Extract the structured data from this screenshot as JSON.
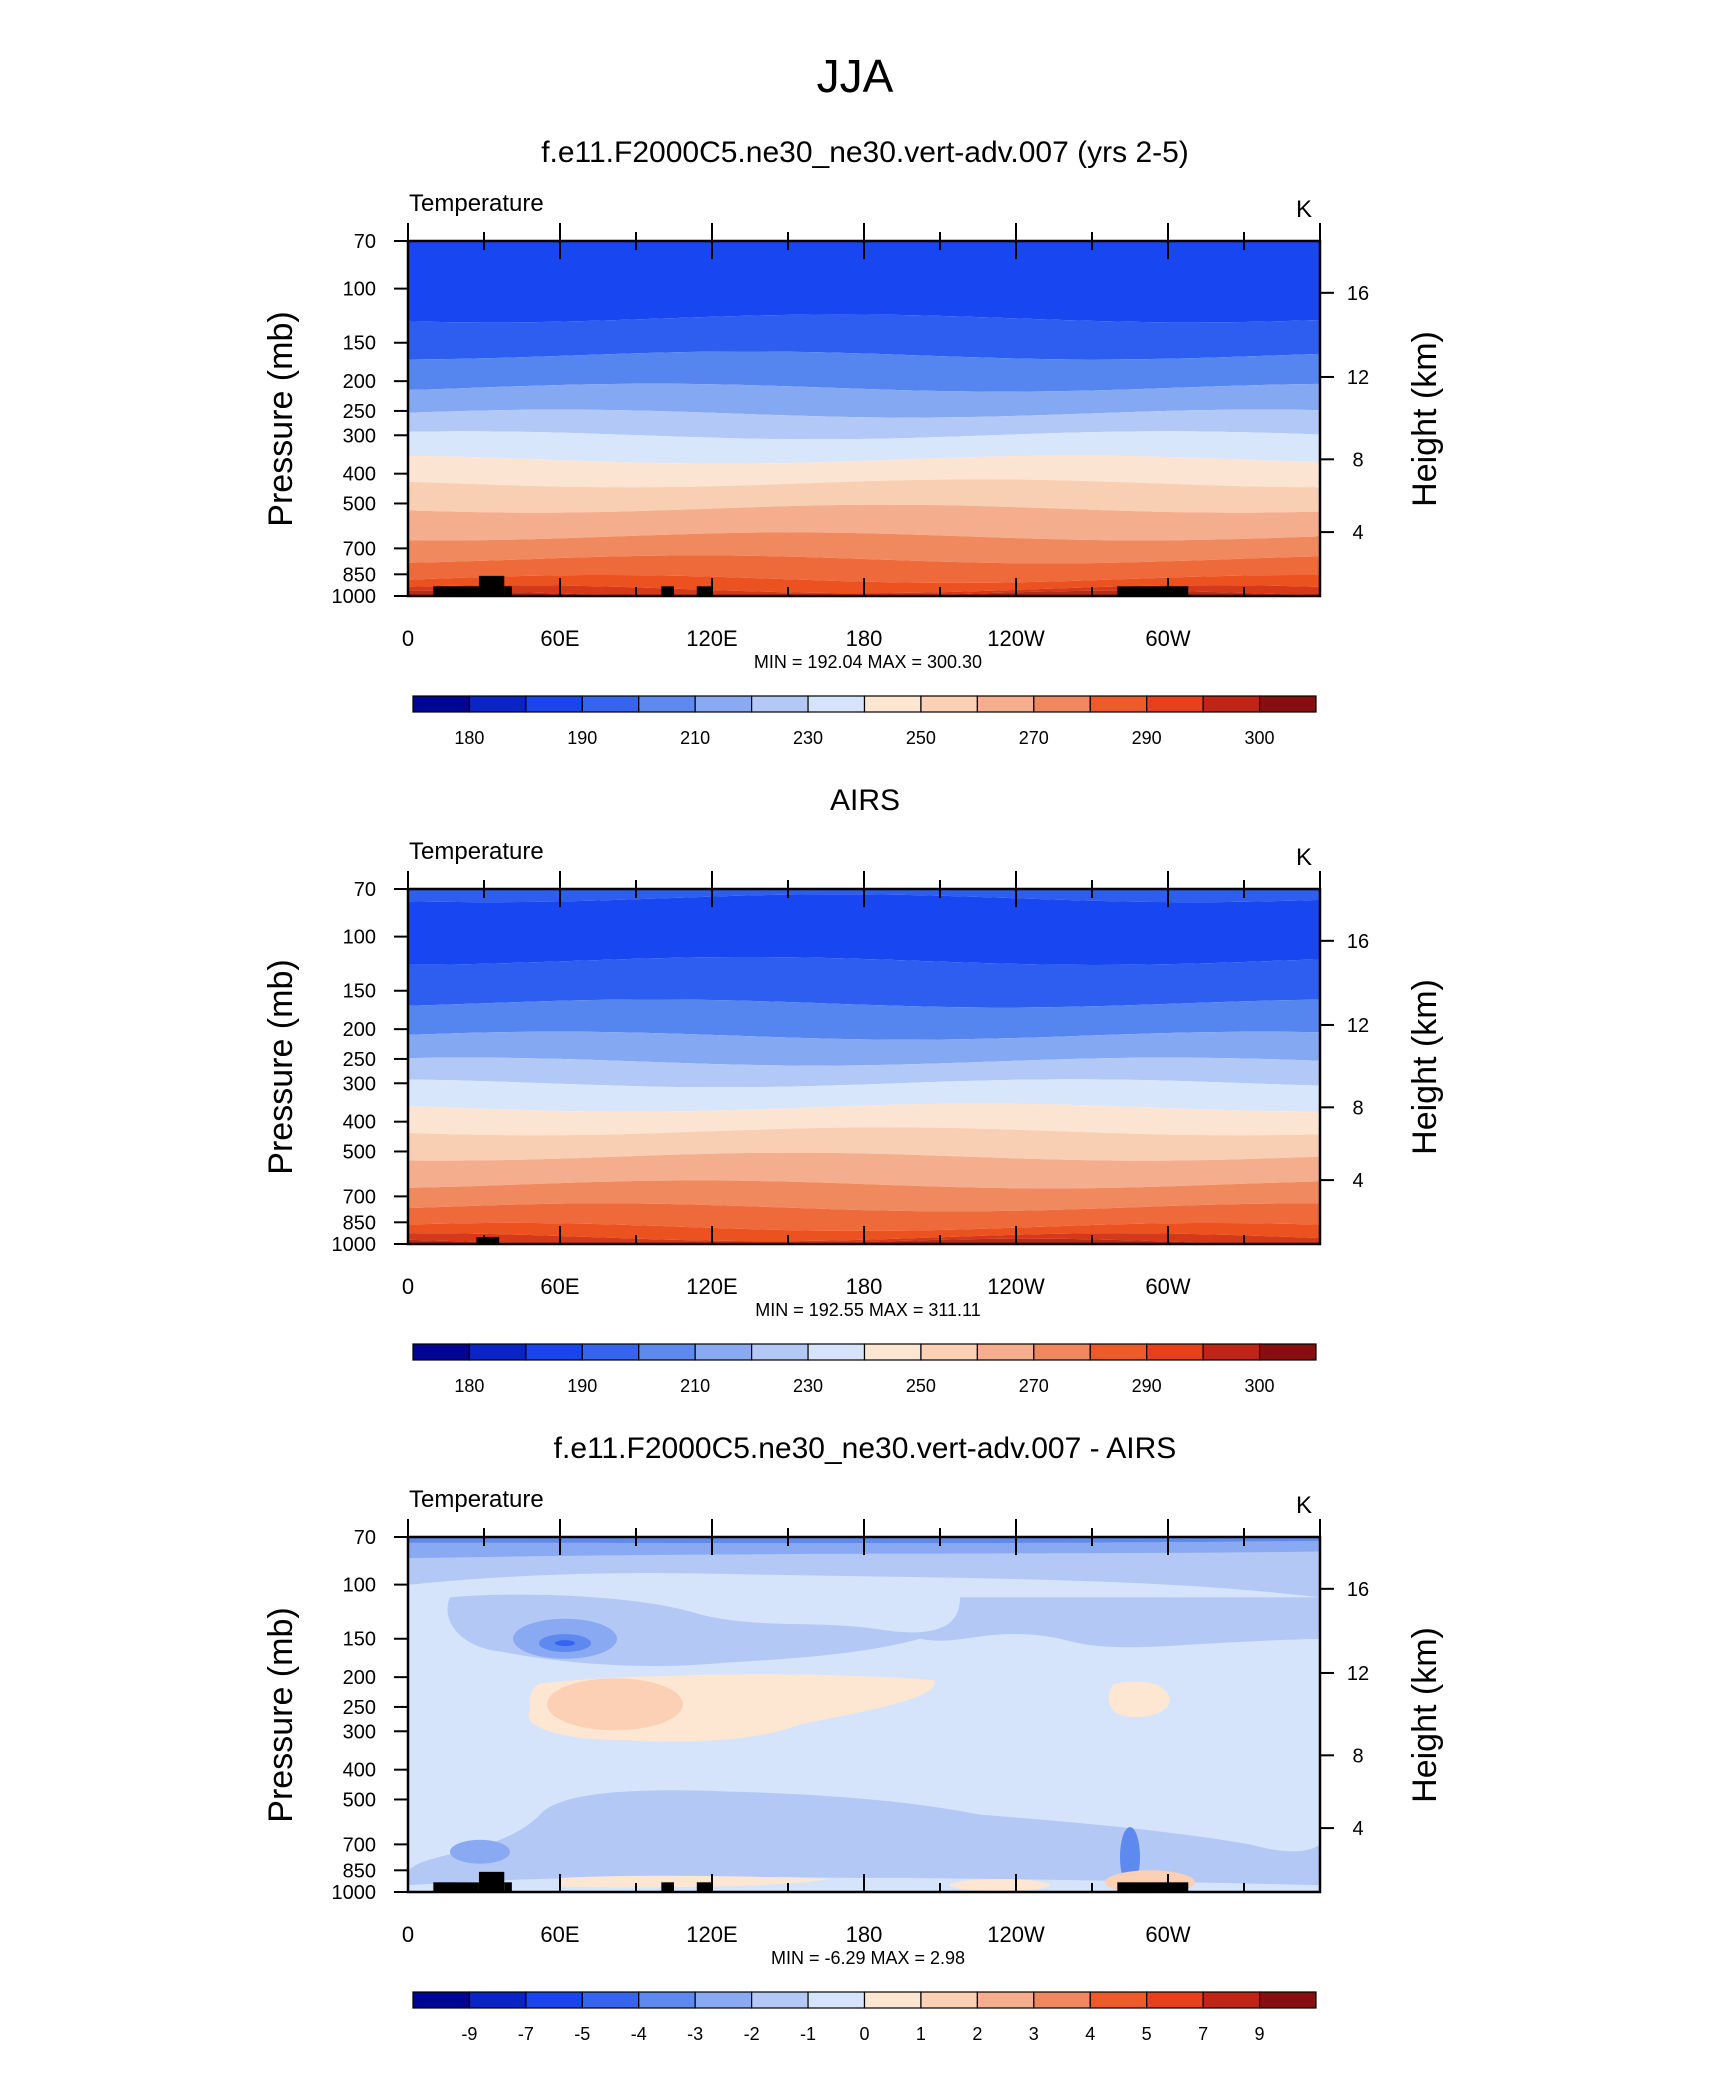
{
  "page": {
    "title": "JJA"
  },
  "chart_data": [
    {
      "type": "contour",
      "panel_title": "f.e11.F2000C5.ne30_ne30.vert-adv.007 (yrs 2-5)",
      "variable_label": "Temperature",
      "units": "K",
      "ylabel": "Pressure (mb)",
      "y2label": "Height (km)",
      "xticks": [
        "0",
        "60E",
        "120E",
        "180",
        "120W",
        "60W"
      ],
      "yticks": [
        "70",
        "100",
        "150",
        "200",
        "250",
        "300",
        "400",
        "500",
        "700",
        "850",
        "1000"
      ],
      "y2ticks": [
        "16",
        "12",
        "8",
        "4"
      ],
      "stats": "MIN = 192.04  MAX = 300.30",
      "min": 192.04,
      "max": 300.3,
      "colorbar_labels": [
        "180",
        "190",
        "210",
        "230",
        "250",
        "270",
        "290",
        "300"
      ],
      "level_band_colors": [
        "#1846f0",
        "#2e5ef0",
        "#5585ee",
        "#84a8f2",
        "#b2c8f6",
        "#d8e6fb",
        "#fbe4d2",
        "#f8cfb2",
        "#f5ae8d",
        "#f08a5e",
        "#ef6a3a",
        "#ec5220",
        "#d6381a",
        "#b82b16"
      ],
      "band_tops_mb": [
        70,
        125,
        165,
        210,
        255,
        300,
        360,
        430,
        520,
        640,
        760,
        880,
        950,
        990
      ],
      "terrain": [
        [
          10,
          28,
          930
        ],
        [
          28,
          38,
          860
        ],
        [
          38,
          41,
          930
        ],
        [
          100,
          105,
          930
        ],
        [
          114,
          120,
          930
        ],
        [
          280,
          308,
          930
        ]
      ]
    },
    {
      "type": "contour",
      "panel_title": "AIRS",
      "variable_label": "Temperature",
      "units": "K",
      "ylabel": "Pressure (mb)",
      "y2label": "Height (km)",
      "xticks": [
        "0",
        "60E",
        "120E",
        "180",
        "120W",
        "60W"
      ],
      "yticks": [
        "70",
        "100",
        "150",
        "200",
        "250",
        "300",
        "400",
        "500",
        "700",
        "850",
        "1000"
      ],
      "y2ticks": [
        "16",
        "12",
        "8",
        "4"
      ],
      "stats": "MIN = 192.55  MAX = 311.11",
      "min": 192.55,
      "max": 311.11,
      "colorbar_labels": [
        "180",
        "190",
        "210",
        "230",
        "250",
        "270",
        "290",
        "300"
      ],
      "level_band_colors": [
        "#2e5ef0",
        "#1846f0",
        "#2e5ef0",
        "#5585ee",
        "#84a8f2",
        "#b2c8f6",
        "#d8e6fb",
        "#fbe4d2",
        "#f8cfb2",
        "#f5ae8d",
        "#f08a5e",
        "#ef6a3a",
        "#ec5220",
        "#d6381a",
        "#b82b16"
      ],
      "band_tops_mb": [
        70,
        75,
        120,
        165,
        210,
        255,
        300,
        360,
        430,
        520,
        640,
        760,
        880,
        950,
        990
      ],
      "terrain": [
        [
          27,
          36,
          950
        ]
      ]
    },
    {
      "type": "contour",
      "panel_title": "f.e11.F2000C5.ne30_ne30.vert-adv.007 - AIRS",
      "variable_label": "Temperature",
      "units": "K",
      "ylabel": "Pressure (mb)",
      "y2label": "Height (km)",
      "xticks": [
        "0",
        "60E",
        "120E",
        "180",
        "120W",
        "60W"
      ],
      "yticks": [
        "70",
        "100",
        "150",
        "200",
        "250",
        "300",
        "400",
        "500",
        "700",
        "850",
        "1000"
      ],
      "y2ticks": [
        "16",
        "12",
        "8",
        "4"
      ],
      "stats": "MIN =  -6.29  MAX =   2.98",
      "min": -6.29,
      "max": 2.98,
      "colorbar_labels": [
        "-9",
        "-7",
        "-5",
        "-4",
        "-3",
        "-2",
        "-1",
        "0",
        "1",
        "2",
        "3",
        "4",
        "5",
        "7",
        "9"
      ],
      "terrain": [
        [
          10,
          28,
          930
        ],
        [
          28,
          38,
          860
        ],
        [
          38,
          41,
          930
        ],
        [
          100,
          105,
          930
        ],
        [
          114,
          120,
          930
        ],
        [
          280,
          308,
          930
        ]
      ]
    }
  ],
  "colorbar_colors": [
    "#000596",
    "#0a24c8",
    "#1a44ee",
    "#3565f0",
    "#5e89ee",
    "#89aaf2",
    "#b3c8f5",
    "#d6e4fb",
    "#fde6d2",
    "#fbd0b4",
    "#f6ae8f",
    "#f1875f",
    "#ee5a2a",
    "#e8401c",
    "#c02416",
    "#8a0e10"
  ]
}
